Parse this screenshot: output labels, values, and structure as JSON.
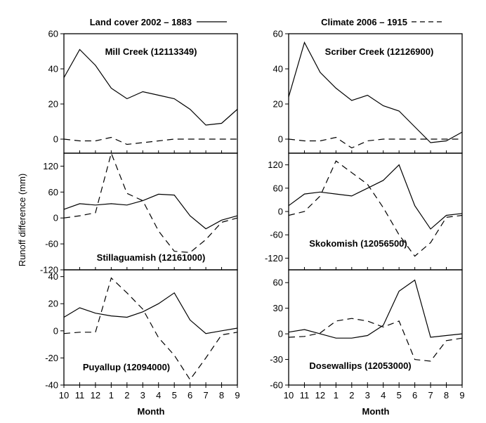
{
  "figure": {
    "ylabel": "Runoff difference (mm)",
    "xlabel": "Month",
    "legend": [
      {
        "label": "Land cover 2002 – 1883",
        "style": "solid"
      },
      {
        "label": "Climate 2006 – 1915",
        "style": "dashed"
      }
    ]
  },
  "chart_data": [
    {
      "type": "line",
      "title": "Mill Creek (12113349)",
      "categories": [
        "10",
        "11",
        "12",
        "1",
        "2",
        "3",
        "4",
        "5",
        "6",
        "7",
        "8",
        "9"
      ],
      "ylim": [
        -8,
        60
      ],
      "yticks": [
        0,
        20,
        40,
        60
      ],
      "series": [
        {
          "name": "Land cover 2002 – 1883",
          "style": "solid",
          "values": [
            35,
            51,
            42,
            29,
            23,
            27,
            25,
            23,
            17,
            8,
            9,
            17
          ]
        },
        {
          "name": "Climate 2006 – 1915",
          "style": "dashed",
          "values": [
            0,
            -1,
            -1,
            1,
            -3,
            -2,
            -1,
            0,
            0,
            0,
            0,
            0
          ]
        }
      ]
    },
    {
      "type": "line",
      "title": "Scriber Creek (12126900)",
      "categories": [
        "10",
        "11",
        "12",
        "1",
        "2",
        "3",
        "4",
        "5",
        "6",
        "7",
        "8",
        "9"
      ],
      "ylim": [
        -8,
        60
      ],
      "yticks": [
        0,
        20,
        40,
        60
      ],
      "series": [
        {
          "name": "Land cover 2002 – 1883",
          "style": "solid",
          "values": [
            24,
            55,
            38,
            29,
            22,
            25,
            19,
            16,
            7,
            -2,
            -1,
            4
          ]
        },
        {
          "name": "Climate 2006 – 1915",
          "style": "dashed",
          "values": [
            0,
            -1,
            -1,
            1,
            -5,
            -1,
            0,
            0,
            0,
            0,
            0,
            0
          ]
        }
      ]
    },
    {
      "type": "line",
      "title": "Stillaguamish (12161000)",
      "categories": [
        "10",
        "11",
        "12",
        "1",
        "2",
        "3",
        "4",
        "5",
        "6",
        "7",
        "8",
        "9"
      ],
      "ylim": [
        -120,
        150
      ],
      "yticks": [
        -120,
        -60,
        0,
        60,
        120
      ],
      "series": [
        {
          "name": "Land cover 2002 – 1883",
          "style": "solid",
          "values": [
            20,
            33,
            30,
            33,
            30,
            40,
            55,
            53,
            5,
            -25,
            -5,
            5
          ]
        },
        {
          "name": "Climate 2006 – 1915",
          "style": "dashed",
          "values": [
            0,
            5,
            12,
            150,
            57,
            40,
            -30,
            -77,
            -80,
            -50,
            -10,
            0
          ]
        }
      ]
    },
    {
      "type": "line",
      "title": "Skokomish (12056500)",
      "categories": [
        "10",
        "11",
        "12",
        "1",
        "2",
        "3",
        "4",
        "5",
        "6",
        "7",
        "8",
        "9"
      ],
      "ylim": [
        -150,
        150
      ],
      "yticks": [
        -120,
        -60,
        0,
        60,
        120
      ],
      "series": [
        {
          "name": "Land cover 2002 – 1883",
          "style": "solid",
          "values": [
            15,
            45,
            50,
            45,
            40,
            60,
            80,
            120,
            15,
            -45,
            -10,
            -5
          ]
        },
        {
          "name": "Climate 2006 – 1915",
          "style": "dashed",
          "values": [
            -10,
            0,
            40,
            130,
            100,
            70,
            10,
            -60,
            -115,
            -80,
            -15,
            -10
          ]
        }
      ]
    },
    {
      "type": "line",
      "title": "Puyallup (12094000)",
      "categories": [
        "10",
        "11",
        "12",
        "1",
        "2",
        "3",
        "4",
        "5",
        "6",
        "7",
        "8",
        "9"
      ],
      "ylim": [
        -40,
        45
      ],
      "yticks": [
        -40,
        -20,
        0,
        20,
        40
      ],
      "series": [
        {
          "name": "Land cover 2002 – 1883",
          "style": "solid",
          "values": [
            10,
            17,
            13,
            11,
            10,
            14,
            20,
            28,
            8,
            -2,
            0,
            2
          ]
        },
        {
          "name": "Climate 2006 – 1915",
          "style": "dashed",
          "values": [
            -2,
            -1,
            -1,
            39,
            28,
            16,
            -5,
            -18,
            -36,
            -20,
            -3,
            -1
          ]
        }
      ]
    },
    {
      "type": "line",
      "title": "Dosewallips (12053000)",
      "categories": [
        "10",
        "11",
        "12",
        "1",
        "2",
        "3",
        "4",
        "5",
        "6",
        "7",
        "8",
        "9"
      ],
      "ylim": [
        -60,
        75
      ],
      "yticks": [
        -60,
        -30,
        0,
        30,
        60
      ],
      "series": [
        {
          "name": "Land cover 2002 – 1883",
          "style": "solid",
          "values": [
            2,
            5,
            0,
            -5,
            -5,
            -2,
            10,
            50,
            63,
            -4,
            -2,
            0
          ]
        },
        {
          "name": "Climate 2006 – 1915",
          "style": "dashed",
          "values": [
            -4,
            -3,
            1,
            15,
            18,
            15,
            8,
            15,
            -30,
            -32,
            -8,
            -5
          ]
        }
      ]
    }
  ]
}
